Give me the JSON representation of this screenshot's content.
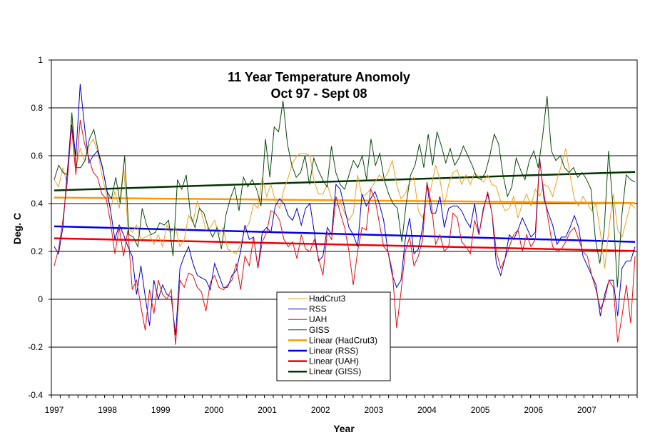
{
  "chart_data": {
    "type": "line",
    "title": "11 Year Temperature Anomoly",
    "subtitle": "Oct 97 - Sept 08",
    "xlabel": "Year",
    "ylabel": "Deg. C",
    "ylim": [
      -0.4,
      1.0
    ],
    "yticks": [
      "1",
      "0.8",
      "0.6",
      "0.4",
      "0.2",
      "0",
      "-0.2",
      "-0.4"
    ],
    "ytick_values": [
      1.0,
      0.8,
      0.6,
      0.4,
      0.2,
      0.0,
      -0.2,
      -0.4
    ],
    "xticks": [
      "1997",
      "1998",
      "1999",
      "2000",
      "2001",
      "2002",
      "2003",
      "2004",
      "2005",
      "2006",
      "2007"
    ],
    "xlim": [
      1997,
      2008
    ],
    "grid": "horizontal",
    "legend_placement": "bottom-center",
    "colors": {
      "HadCrut3": "#f0a020",
      "RSS": "#0000cc",
      "UAH": "#e01010",
      "GISS": "#0a4a0a",
      "Linear (HadCrut3)": "#ff9900",
      "Linear (RSS)": "#0000ee",
      "Linear (UAH)": "#ee0000",
      "Linear (GISS)": "#003300"
    },
    "series": [
      {
        "name": "HadCrut3",
        "values": [
          0.5,
          0.47,
          0.55,
          0.48,
          0.76,
          0.55,
          0.63,
          0.58,
          0.64,
          0.67,
          0.62,
          0.52,
          0.44,
          0.38,
          0.45,
          0.38,
          0.56,
          0.3,
          0.28,
          0.31,
          0.25,
          0.26,
          0.27,
          0.23,
          0.27,
          0.22,
          0.31,
          0.28,
          0.3,
          0.22,
          0.25,
          0.35,
          0.32,
          0.41,
          0.36,
          0.29,
          0.3,
          0.33,
          0.27,
          0.3,
          0.21,
          0.2,
          0.19,
          0.23,
          0.29,
          0.32,
          0.4,
          0.38,
          0.51,
          0.43,
          0.48,
          0.41,
          0.38,
          0.46,
          0.51,
          0.57,
          0.6,
          0.61,
          0.61,
          0.6,
          0.49,
          0.44,
          0.44,
          0.48,
          0.42,
          0.39,
          0.41,
          0.36,
          0.33,
          0.36,
          0.52,
          0.43,
          0.44,
          0.46,
          0.49,
          0.52,
          0.5,
          0.53,
          0.58,
          0.48,
          0.42,
          0.44,
          0.49,
          0.51,
          0.37,
          0.34,
          0.41,
          0.47,
          0.56,
          0.5,
          0.39,
          0.48,
          0.53,
          0.54,
          0.48,
          0.52,
          0.48,
          0.53,
          0.51,
          0.49,
          0.52,
          0.48,
          0.47,
          0.41,
          0.37,
          0.38,
          0.43,
          0.34,
          0.4,
          0.44,
          0.39,
          0.46,
          0.43,
          0.48,
          0.47,
          0.43,
          0.5,
          0.56,
          0.63,
          0.52,
          0.42,
          0.39,
          0.43,
          0.4,
          0.37,
          0.4,
          0.28,
          0.13,
          0.3,
          0.44,
          0.29,
          0.26,
          0.33,
          0.4,
          0.38
        ],
        "x_start": 1997.0
      },
      {
        "name": "RSS",
        "values": [
          0.22,
          0.19,
          0.3,
          0.53,
          0.73,
          0.6,
          0.9,
          0.72,
          0.57,
          0.6,
          0.62,
          0.56,
          0.47,
          0.37,
          0.25,
          0.31,
          0.27,
          0.22,
          0.18,
          0.02,
          0.14,
          0.01,
          -0.11,
          0.08,
          0.0,
          0.06,
          0.02,
          0.01,
          -0.15,
          0.13,
          0.18,
          0.22,
          0.15,
          0.1,
          0.09,
          0.08,
          0.04,
          0.15,
          0.1,
          0.05,
          0.05,
          0.1,
          0.12,
          0.2,
          0.31,
          0.25,
          0.26,
          0.13,
          0.28,
          0.3,
          0.28,
          0.39,
          0.42,
          0.4,
          0.35,
          0.33,
          0.38,
          0.31,
          0.38,
          0.4,
          0.28,
          0.16,
          0.18,
          0.3,
          0.27,
          0.48,
          0.46,
          0.38,
          0.3,
          0.27,
          0.22,
          0.44,
          0.39,
          0.42,
          0.45,
          0.4,
          0.33,
          0.2,
          0.1,
          0.05,
          0.08,
          0.25,
          0.34,
          0.19,
          0.21,
          0.3,
          0.48,
          0.36,
          0.36,
          0.43,
          0.3,
          0.38,
          0.39,
          0.39,
          0.37,
          0.33,
          0.3,
          0.4,
          0.27,
          0.38,
          0.44,
          0.36,
          0.15,
          0.1,
          0.17,
          0.27,
          0.25,
          0.29,
          0.34,
          0.3,
          0.26,
          0.28,
          0.59,
          0.42,
          0.36,
          0.31,
          0.23,
          0.26,
          0.26,
          0.3,
          0.35,
          0.3,
          0.18,
          0.14,
          0.1,
          0.06,
          -0.07,
          0.02,
          0.08,
          0.08,
          -0.07,
          0.13,
          0.16,
          0.16,
          0.22
        ],
        "x_start": 1997.0
      },
      {
        "name": "UAH",
        "values": [
          0.14,
          0.21,
          0.33,
          0.49,
          0.72,
          0.52,
          0.75,
          0.65,
          0.59,
          0.53,
          0.51,
          0.44,
          0.42,
          0.32,
          0.19,
          0.3,
          0.18,
          0.29,
          0.04,
          0.08,
          -0.03,
          -0.13,
          0.04,
          -0.06,
          0.08,
          0.02,
          0.0,
          0.04,
          -0.19,
          0.08,
          0.05,
          0.11,
          0.1,
          0.05,
          0.03,
          -0.05,
          0.07,
          0.1,
          0.05,
          0.04,
          0.06,
          0.08,
          0.15,
          0.04,
          0.18,
          0.14,
          0.26,
          0.13,
          0.24,
          0.28,
          0.37,
          0.36,
          0.33,
          0.25,
          0.22,
          0.24,
          0.17,
          0.27,
          0.21,
          0.2,
          0.25,
          0.17,
          0.1,
          0.28,
          0.25,
          0.43,
          0.36,
          0.3,
          0.2,
          0.06,
          0.2,
          0.3,
          0.29,
          0.46,
          0.42,
          0.32,
          0.22,
          0.2,
          0.12,
          -0.12,
          0.03,
          0.2,
          0.26,
          0.14,
          0.18,
          0.25,
          0.49,
          0.4,
          0.23,
          0.27,
          0.2,
          0.22,
          0.36,
          0.34,
          0.24,
          0.22,
          0.19,
          0.33,
          0.27,
          0.37,
          0.45,
          0.36,
          0.2,
          0.13,
          0.17,
          0.22,
          0.27,
          0.29,
          0.2,
          0.27,
          0.22,
          0.25,
          0.58,
          0.44,
          0.33,
          0.22,
          0.2,
          0.21,
          0.24,
          0.28,
          0.3,
          0.25,
          0.2,
          0.18,
          0.1,
          0.04,
          -0.04,
          0.0,
          0.08,
          0.05,
          -0.18,
          -0.07,
          0.06,
          -0.1,
          0.18
        ],
        "x_start": 1997.0
      },
      {
        "name": "GISS",
        "values": [
          0.5,
          0.56,
          0.53,
          0.52,
          0.78,
          0.55,
          0.55,
          0.58,
          0.67,
          0.71,
          0.62,
          0.55,
          0.45,
          0.42,
          0.51,
          0.4,
          0.6,
          0.27,
          0.26,
          0.22,
          0.38,
          0.31,
          0.27,
          0.28,
          0.32,
          0.31,
          0.33,
          0.18,
          0.5,
          0.46,
          0.52,
          0.35,
          0.3,
          0.38,
          0.36,
          0.3,
          0.26,
          0.3,
          0.21,
          0.35,
          0.42,
          0.47,
          0.37,
          0.51,
          0.47,
          0.5,
          0.46,
          0.39,
          0.67,
          0.51,
          0.72,
          0.7,
          0.83,
          0.65,
          0.56,
          0.51,
          0.53,
          0.6,
          0.48,
          0.59,
          0.54,
          0.5,
          0.47,
          0.64,
          0.53,
          0.48,
          0.46,
          0.52,
          0.58,
          0.55,
          0.6,
          0.5,
          0.67,
          0.56,
          0.61,
          0.5,
          0.44,
          0.4,
          0.38,
          0.24,
          0.4,
          0.52,
          0.56,
          0.65,
          0.55,
          0.69,
          0.56,
          0.7,
          0.64,
          0.57,
          0.63,
          0.56,
          0.59,
          0.64,
          0.6,
          0.56,
          0.51,
          0.5,
          0.53,
          0.6,
          0.69,
          0.65,
          0.52,
          0.43,
          0.47,
          0.59,
          0.54,
          0.5,
          0.58,
          0.62,
          0.55,
          0.68,
          0.85,
          0.62,
          0.58,
          0.6,
          0.55,
          0.53,
          0.55,
          0.51,
          0.53,
          0.5,
          0.46,
          0.25,
          0.15,
          0.29,
          0.62,
          0.38,
          0.05,
          0.35,
          0.52,
          0.5,
          0.49
        ],
        "x_start": 1997.0
      }
    ],
    "trendlines": [
      {
        "name": "Linear (HadCrut3)",
        "of": "HadCrut3",
        "start": 0.425,
        "end": 0.402
      },
      {
        "name": "Linear (RSS)",
        "of": "RSS",
        "start": 0.305,
        "end": 0.24
      },
      {
        "name": "Linear (UAH)",
        "of": "UAH",
        "start": 0.255,
        "end": 0.202
      },
      {
        "name": "Linear (GISS)",
        "of": "GISS",
        "start": 0.455,
        "end": 0.532
      }
    ],
    "legend": [
      "HadCrut3",
      "RSS",
      "UAH",
      "GISS",
      "Linear (HadCrut3)",
      "Linear (RSS)",
      "Linear (UAH)",
      "Linear (GISS)"
    ]
  }
}
